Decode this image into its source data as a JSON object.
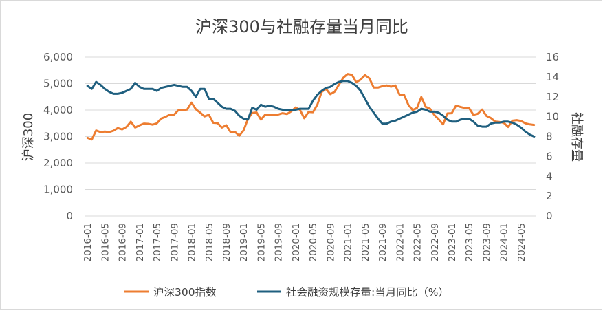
{
  "chart_data": {
    "type": "line",
    "title": "沪深300与社融存量当月同比",
    "ylabel_left": "沪深300",
    "ylabel_right": "社融存量",
    "y_left_ticks": [
      "0",
      "1,000",
      "2,000",
      "3,000",
      "4,000",
      "5,000",
      "6,000"
    ],
    "y_right_ticks": [
      "0",
      "2",
      "4",
      "6",
      "8",
      "10",
      "12",
      "14",
      "16"
    ],
    "ylim_left": [
      0,
      6000
    ],
    "ylim_right": [
      0,
      16
    ],
    "x_tick_labels": [
      "2016-01",
      "2016-05",
      "2016-09",
      "2017-01",
      "2017-05",
      "2017-09",
      "2018-01",
      "2018-05",
      "2018-09",
      "2019-01",
      "2019-05",
      "2019-09",
      "2020-01",
      "2020-05",
      "2020-09",
      "2021-01",
      "2021-05",
      "2021-09",
      "2022-01",
      "2022-05",
      "2022-09",
      "2023-01",
      "2023-05",
      "2023-09",
      "2024-01",
      "2024-05"
    ],
    "colors": {
      "hs300": "#ED7D31",
      "tsf": "#1F5F7F",
      "grid": "#D9D9D9",
      "text": "#595959"
    },
    "legend_position": "bottom",
    "series": [
      {
        "name": "沪深300指数",
        "axis": "left",
        "values": [
          2950,
          2890,
          3230,
          3170,
          3190,
          3170,
          3220,
          3320,
          3270,
          3360,
          3560,
          3340,
          3420,
          3490,
          3480,
          3450,
          3500,
          3680,
          3740,
          3830,
          3830,
          4000,
          4000,
          4020,
          4280,
          4030,
          3900,
          3760,
          3820,
          3520,
          3510,
          3340,
          3430,
          3170,
          3180,
          3030,
          3230,
          3660,
          3890,
          3910,
          3640,
          3830,
          3830,
          3810,
          3830,
          3880,
          3850,
          3950,
          4100,
          4010,
          3690,
          3930,
          3920,
          4200,
          4680,
          4800,
          4600,
          4690,
          4960,
          5220,
          5360,
          5330,
          5050,
          5150,
          5320,
          5200,
          4850,
          4850,
          4900,
          4930,
          4880,
          4930,
          4570,
          4580,
          4200,
          4000,
          4080,
          4490,
          4120,
          4050,
          3810,
          3650,
          3460,
          3870,
          3880,
          4170,
          4120,
          4080,
          4080,
          3820,
          3860,
          4020,
          3780,
          3700,
          3570,
          3550,
          3520,
          3360,
          3600,
          3620,
          3590,
          3500,
          3460,
          3440
        ]
      },
      {
        "name": "社会融资规模存量:当月同比（%）",
        "axis": "right",
        "values": [
          13.1,
          12.8,
          13.5,
          13.2,
          12.8,
          12.5,
          12.3,
          12.3,
          12.4,
          12.6,
          12.8,
          13.4,
          13.0,
          12.8,
          12.8,
          12.8,
          12.6,
          12.9,
          13.0,
          13.1,
          13.2,
          13.1,
          13.0,
          13.0,
          12.6,
          12.0,
          12.8,
          12.8,
          11.8,
          11.8,
          11.4,
          11.0,
          10.8,
          10.8,
          10.6,
          10.1,
          9.8,
          9.7,
          10.9,
          10.7,
          11.2,
          11.0,
          11.1,
          11.0,
          10.8,
          10.7,
          10.7,
          10.7,
          10.7,
          10.8,
          10.8,
          10.8,
          11.6,
          12.2,
          12.6,
          12.9,
          13.0,
          13.3,
          13.5,
          13.6,
          13.6,
          13.4,
          13.1,
          12.6,
          11.8,
          11.0,
          10.4,
          9.8,
          9.3,
          9.3,
          9.5,
          9.6,
          9.8,
          10.0,
          10.2,
          10.4,
          10.5,
          10.8,
          10.7,
          10.5,
          10.5,
          10.4,
          10.1,
          9.7,
          9.5,
          9.5,
          9.7,
          9.8,
          9.8,
          9.5,
          9.1,
          9.0,
          9.0,
          9.3,
          9.4,
          9.4,
          9.5,
          9.5,
          9.4,
          9.2,
          8.9,
          8.5,
          8.2,
          8.0
        ]
      }
    ]
  }
}
